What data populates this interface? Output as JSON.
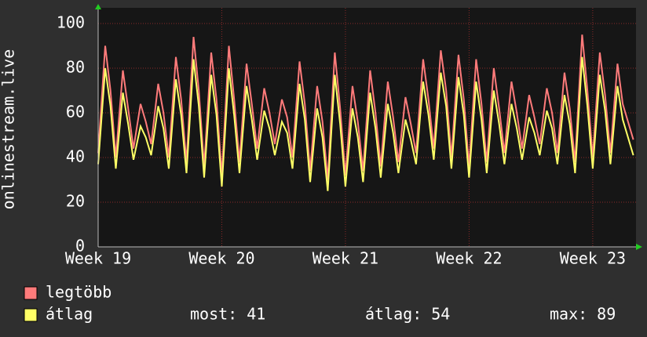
{
  "chart_data": {
    "type": "line",
    "ylabel": "onlinestream.live",
    "x": [
      0,
      0.4,
      0.7,
      1,
      1.4,
      1.7,
      2,
      2.4,
      2.7,
      3,
      3.4,
      3.7,
      4,
      4.4,
      4.7,
      5,
      5.4,
      5.7,
      6,
      6.4,
      6.7,
      7,
      7.4,
      7.7,
      8,
      8.4,
      8.7,
      9,
      9.4,
      9.7,
      10,
      10.4,
      10.7,
      11,
      11.4,
      11.7,
      12,
      12.4,
      12.7,
      13,
      13.4,
      13.7,
      14,
      14.4,
      14.7,
      15,
      15.4,
      15.7,
      16,
      16.4,
      16.7,
      17,
      17.4,
      17.7,
      18,
      18.4,
      18.7,
      19,
      19.4,
      19.7,
      20,
      20.4,
      20.7,
      21,
      21.4,
      21.7,
      22,
      22.4,
      22.7,
      23,
      23.4,
      23.7,
      24,
      24.4,
      24.7,
      25,
      25.4,
      25.7,
      26,
      26.4,
      26.7,
      27,
      27.4,
      27.7,
      28,
      28.4,
      28.7,
      29,
      29.4,
      29.7,
      30.3
    ],
    "series": [
      {
        "name": "legtöbb",
        "color": "#ff7b7b",
        "values": [
          42,
          90,
          70,
          40,
          79,
          62,
          44,
          64,
          56,
          46,
          73,
          60,
          40,
          85,
          66,
          38,
          94,
          70,
          36,
          87,
          66,
          32,
          90,
          66,
          38,
          82,
          64,
          44,
          71,
          60,
          46,
          66,
          58,
          40,
          83,
          64,
          34,
          72,
          56,
          30,
          87,
          62,
          32,
          72,
          56,
          34,
          79,
          60,
          36,
          74,
          58,
          38,
          67,
          55,
          42,
          84,
          66,
          44,
          88,
          70,
          40,
          86,
          66,
          36,
          84,
          64,
          38,
          80,
          62,
          42,
          74,
          60,
          44,
          68,
          58,
          46,
          71,
          60,
          42,
          78,
          62,
          38,
          95,
          70,
          40,
          87,
          68,
          42,
          82,
          64,
          48
        ]
      },
      {
        "name": "átlag",
        "color": "#ffff66",
        "values": [
          37,
          80,
          63,
          35,
          69,
          55,
          39,
          54,
          49,
          41,
          63,
          53,
          35,
          75,
          59,
          33,
          84,
          63,
          31,
          77,
          59,
          27,
          80,
          59,
          33,
          72,
          57,
          39,
          61,
          53,
          41,
          56,
          51,
          35,
          73,
          57,
          29,
          62,
          49,
          25,
          77,
          55,
          27,
          62,
          49,
          29,
          69,
          53,
          31,
          64,
          51,
          33,
          57,
          48,
          37,
          74,
          59,
          39,
          78,
          63,
          35,
          76,
          59,
          31,
          74,
          57,
          33,
          70,
          55,
          37,
          64,
          53,
          39,
          58,
          51,
          41,
          61,
          53,
          37,
          68,
          55,
          33,
          85,
          63,
          35,
          77,
          61,
          37,
          72,
          57,
          41
        ]
      }
    ],
    "stats": [
      {
        "label": "most:",
        "value": 41
      },
      {
        "label": "átlag:",
        "value": 54
      },
      {
        "label": "max:",
        "value": 89
      }
    ],
    "xlim": [
      0,
      30.45
    ],
    "xticks": [
      {
        "value": 0,
        "label": "Week 19"
      },
      {
        "value": 7,
        "label": "Week 20"
      },
      {
        "value": 14,
        "label": "Week 21"
      },
      {
        "value": 21,
        "label": "Week 22"
      },
      {
        "value": 28,
        "label": "Week 23"
      }
    ],
    "ylim": [
      0,
      107
    ],
    "yticks": [
      0,
      20,
      40,
      60,
      80,
      100
    ],
    "grid": true
  }
}
